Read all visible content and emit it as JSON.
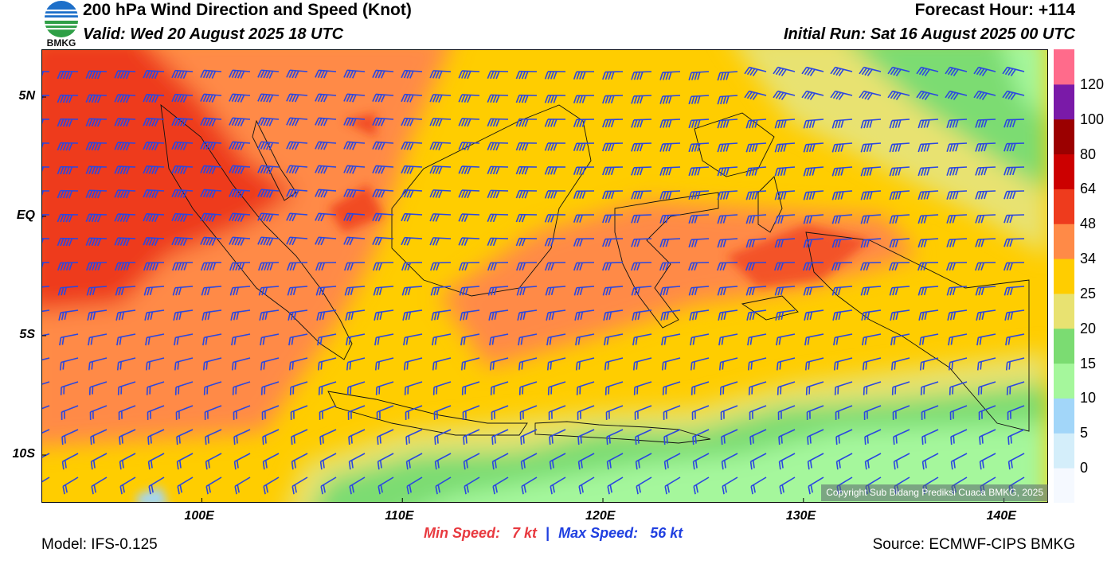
{
  "header": {
    "title": "200 hPa Wind Direction and Speed (Knot)",
    "valid": "Valid: Wed 20 August 2025 18 UTC",
    "forecast_hour": "Forecast Hour: +114",
    "initial_run": "Initial Run: Sat 16 August 2025 00 UTC",
    "logo_text": "BMKG"
  },
  "map": {
    "lat_labels": [
      {
        "label": "5N",
        "value": 5
      },
      {
        "label": "EQ",
        "value": 0
      },
      {
        "label": "5S",
        "value": -5
      },
      {
        "label": "10S",
        "value": -10
      }
    ],
    "lon_labels": [
      {
        "label": "100E",
        "value": 100
      },
      {
        "label": "110E",
        "value": 110
      },
      {
        "label": "120E",
        "value": 120
      },
      {
        "label": "130E",
        "value": 130
      },
      {
        "label": "140E",
        "value": 140
      }
    ],
    "lon_range": [
      92,
      142.2
    ],
    "lat_range": [
      -12,
      7
    ],
    "barb_color": "#2b47e0",
    "copyright": "Copyright Sub Bidang Prediksi Cuaca BMKG, 2025"
  },
  "colorbar": {
    "labels": [
      "0",
      "5",
      "10",
      "15",
      "20",
      "25",
      "34",
      "48",
      "64",
      "80",
      "100",
      "120"
    ],
    "colors": [
      "#f5f9ff",
      "#d4eefa",
      "#a2d6f9",
      "#a5f79c",
      "#7bdc72",
      "#e8e271",
      "#ffcd00",
      "#ff8a47",
      "#ee3b1d",
      "#cc0000",
      "#9b0000",
      "#7a1aa8",
      "#ff6b8b"
    ]
  },
  "footer": {
    "model": "Model: IFS-0.125",
    "source": "Source: ECMWF-CIPS BMKG",
    "min_label": "Min Speed:",
    "min_value": "7 kt",
    "separator": "|",
    "max_label": "Max Speed:",
    "max_value": "56 kt"
  }
}
